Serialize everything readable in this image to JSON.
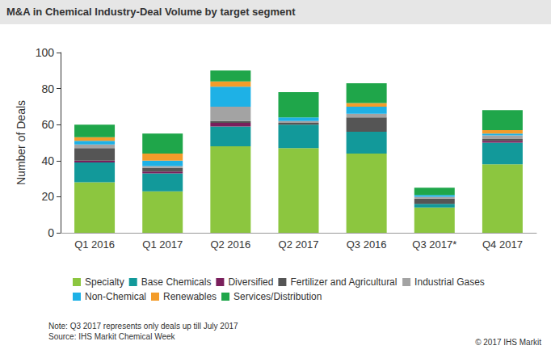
{
  "chart_data": {
    "type": "bar",
    "stacked": true,
    "title": "M&A in Chemical Industry-Deal Volume by target segment",
    "y_label": "Number of Deals",
    "categories": [
      "Q1 2016",
      "Q1 2017",
      "Q2 2016",
      "Q2 2017",
      "Q3 2016",
      "Q3 2017*",
      "Q4 2017"
    ],
    "ylim": [
      0,
      100
    ],
    "yticks": [
      0,
      20,
      40,
      60,
      80,
      100
    ],
    "grid": false,
    "legend": "bottom",
    "series": [
      {
        "name": "Specialty",
        "color": "#8cc63f",
        "values": [
          28,
          23,
          48,
          47,
          44,
          14,
          38
        ]
      },
      {
        "name": "Base Chemicals",
        "color": "#12999a",
        "values": [
          11,
          10,
          11,
          13,
          12,
          2,
          12
        ]
      },
      {
        "name": "Diversified",
        "color": "#7a1f5c",
        "values": [
          1,
          1,
          2,
          0,
          0,
          0,
          1
        ]
      },
      {
        "name": "Fertilizer and Agricultural",
        "color": "#555555",
        "values": [
          7,
          2,
          1,
          1,
          8,
          3,
          1
        ]
      },
      {
        "name": "Industrial Gases",
        "color": "#a3a3a3",
        "values": [
          2,
          1,
          8,
          1,
          2,
          1,
          2
        ]
      },
      {
        "name": "Non-Chemical",
        "color": "#1eb1e6",
        "values": [
          2,
          3,
          11,
          2,
          4,
          1,
          1
        ]
      },
      {
        "name": "Renewables",
        "color": "#f39c2a",
        "values": [
          2,
          4,
          3,
          0,
          2,
          0,
          2
        ]
      },
      {
        "name": "Services/Distribution",
        "color": "#1fa64a",
        "values": [
          7,
          11,
          6,
          14,
          11,
          4,
          11
        ]
      }
    ],
    "annotations": [
      "Note: Q3 2017 represents only deals up till July 2017",
      "Source: IHS Markit Chemical Week",
      "© 2017 IHS Markit"
    ]
  }
}
